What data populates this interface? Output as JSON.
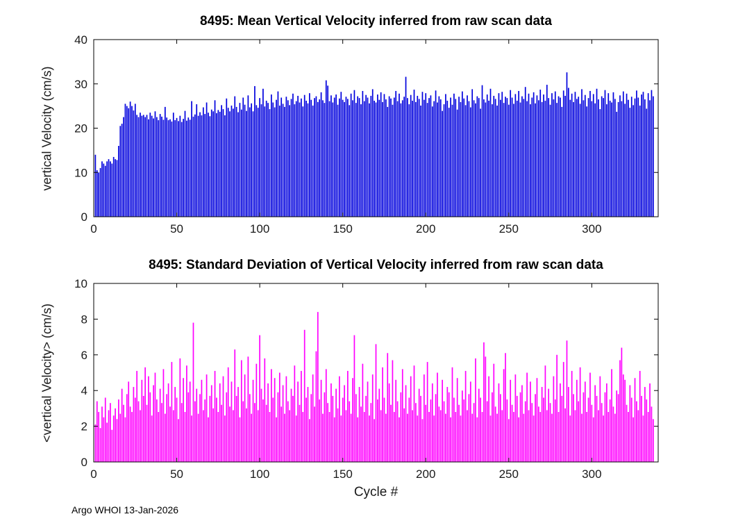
{
  "footer": {
    "credit": "Argo WHOI 13-Jan-2026"
  },
  "chart_data": [
    {
      "type": "bar",
      "title": "8495: Mean Vertical Velocity inferred from raw scan data",
      "ylabel": "vertical Velocity (cm/s)",
      "xlabel": "",
      "bar_color": "#0000dd",
      "ylim": [
        0,
        40
      ],
      "yticks": [
        0,
        10,
        20,
        30,
        40
      ],
      "xlim": [
        0,
        340
      ],
      "xticks": [
        0,
        50,
        100,
        150,
        200,
        250,
        300
      ],
      "x_start": 1,
      "values": [
        14,
        10.5,
        10,
        11,
        12.5,
        12,
        11.5,
        12.5,
        13,
        12.5,
        12,
        13.5,
        13,
        12.8,
        16,
        20.5,
        21,
        22.5,
        25.5,
        25,
        24.5,
        26,
        25,
        24,
        25.5,
        23,
        22.5,
        23.5,
        22.8,
        23,
        22.5,
        23,
        22,
        23.5,
        22.8,
        22.2,
        23.8,
        22.5,
        21.8,
        23.2,
        22.6,
        21.9,
        24.8,
        22.4,
        21.8,
        22,
        21.5,
        23.5,
        21.8,
        22.3,
        21.6,
        22.8,
        21.4,
        22.1,
        23.9,
        21.7,
        22.4,
        21.9,
        26.1,
        22.6,
        23.1,
        25.4,
        22.8,
        23.6,
        22.9,
        24.7,
        23.2,
        25.8,
        23.5,
        22.7,
        24.2,
        23.8,
        26.3,
        23.4,
        24.1,
        23.7,
        25.2,
        24.3,
        22.9,
        26.7,
        24.6,
        23.8,
        25.1,
        24.4,
        27.2,
        24.8,
        23.6,
        25.7,
        24.2,
        26.9,
        25.3,
        23.9,
        27.4,
        24.7,
        25.6,
        23.8,
        29.5,
        25.2,
        24.6,
        26.8,
        25.4,
        28.9,
        24.9,
        26.2,
        25.7,
        24.3,
        27.6,
        25.8,
        24.7,
        26.4,
        28.3,
        25.1,
        26.9,
        25.5,
        24.8,
        27.1,
        26.3,
        25.2,
        26.6,
        27.8,
        25.4,
        26.1,
        27.3,
        25.8,
        26.7,
        24.9,
        27.5,
        26.2,
        25.6,
        27.9,
        26.4,
        25.1,
        26.8,
        27.2,
        25.9,
        26.5,
        28.1,
        26.3,
        25.7,
        30.8,
        29.6,
        26.1,
        27.4,
        25.8,
        26.9,
        27.6,
        25.3,
        26.7,
        28.2,
        26.4,
        25.9,
        27.1,
        26.6,
        25.2,
        27.8,
        26.3,
        28.6,
        25.7,
        27.2,
        26.8,
        25.4,
        28.4,
        26.1,
        27.5,
        26.9,
        25.6,
        27.3,
        28.8,
        26.2,
        25.8,
        27.6,
        26.4,
        28.1,
        25.9,
        27.7,
        26.5,
        24.8,
        27.2,
        26.7,
        25.3,
        26.9,
        28.4,
        26.1,
        27.8,
        25.6,
        26.3,
        27.1,
        31.6,
        26.8,
        25.4,
        27.5,
        26.2,
        28.7,
        25.9,
        27.3,
        26.6,
        25.1,
        28.2,
        26.4,
        27.9,
        25.7,
        26.8,
        27.4,
        24.9,
        26.1,
        28.5,
        25.8,
        27.2,
        26.5,
        23.9,
        25.4,
        27.7,
        26.2,
        24.6,
        26.9,
        25.3,
        27.8,
        26.6,
        24.2,
        27.1,
        25.9,
        28.3,
        26.7,
        25.2,
        27.4,
        26.1,
        24.7,
        28.8,
        26.3,
        25.6,
        27.2,
        26.8,
        24.4,
        29.7,
        26.5,
        25.8,
        27.6,
        26.2,
        28.9,
        25.4,
        27.3,
        26.6,
        25.1,
        27.9,
        26.4,
        28.2,
        25.7,
        27.1,
        26.8,
        25.3,
        28.6,
        26.9,
        25.5,
        27.7,
        26.2,
        28.4,
        25.8,
        27.2,
        26.6,
        29.3,
        26.1,
        27.8,
        25.4,
        26.9,
        28.1,
        25.6,
        27.4,
        26.3,
        28.7,
        25.9,
        27.6,
        26.2,
        29.8,
        26.8,
        25.3,
        27.9,
        26.5,
        28.3,
        25.7,
        27.2,
        26.9,
        24.8,
        28.5,
        27.3,
        32.6,
        29.1,
        26.4,
        27.8,
        25.9,
        28.2,
        26.6,
        27.1,
        25.5,
        28.8,
        26.3,
        27.5,
        24.9,
        26.8,
        28.4,
        26.1,
        27.7,
        25.6,
        28.9,
        26.5,
        24.3,
        27.2,
        26.8,
        28.6,
        25.4,
        27.9,
        26.2,
        25.8,
        28.1,
        26.6,
        23.7,
        25.9,
        27.4,
        26.1,
        28.3,
        25.5,
        27.8,
        26.4,
        24.6,
        27.1,
        25.2,
        26.7,
        28.5,
        26.9,
        25.1,
        27.6,
        28.2,
        26.5,
        24.4,
        27.9,
        26.3,
        28.6,
        27.2
      ]
    },
    {
      "type": "bar",
      "title": "8495: Standard Deviation of Vertical Velocity inferred from raw scan data",
      "ylabel": "<vertical Velocity> (cm/s)",
      "xlabel": "Cycle #",
      "bar_color": "#ff00ff",
      "ylim": [
        0,
        10
      ],
      "yticks": [
        0,
        2,
        4,
        6,
        8,
        10
      ],
      "xlim": [
        0,
        340
      ],
      "xticks": [
        0,
        50,
        100,
        150,
        200,
        250,
        300
      ],
      "x_start": 1,
      "values": [
        2.1,
        3.4,
        2.8,
        1.9,
        3.1,
        2.5,
        3.6,
        2.2,
        2.9,
        3.3,
        1.8,
        2.6,
        3.0,
        2.4,
        3.5,
        2.7,
        4.1,
        3.2,
        2.5,
        3.8,
        4.5,
        3.1,
        2.8,
        4.2,
        3.6,
        5.1,
        3.4,
        2.9,
        4.6,
        3.7,
        5.3,
        3.2,
        4.8,
        3.9,
        2.6,
        4.3,
        5.0,
        3.5,
        2.8,
        4.1,
        3.3,
        5.2,
        2.7,
        3.8,
        4.4,
        3.1,
        5.6,
        2.9,
        4.2,
        3.6,
        2.4,
        5.8,
        3.3,
        4.7,
        2.8,
        5.4,
        3.9,
        4.5,
        2.6,
        7.8,
        3.4,
        4.1,
        2.7,
        3.8,
        4.6,
        2.9,
        3.5,
        4.9,
        2.5,
        3.7,
        4.3,
        3.0,
        5.1,
        3.6,
        2.8,
        4.4,
        3.2,
        4.8,
        2.6,
        3.9,
        5.3,
        3.1,
        4.5,
        2.9,
        6.3,
        3.7,
        4.2,
        2.5,
        5.7,
        3.4,
        4.9,
        3.0,
        5.9,
        3.8,
        2.7,
        4.6,
        3.3,
        5.5,
        2.9,
        7.1,
        4.1,
        3.5,
        5.8,
        3.2,
        4.4,
        2.8,
        5.2,
        3.6,
        4.7,
        2.5,
        3.9,
        5.0,
        3.1,
        4.3,
        2.7,
        4.8,
        3.4,
        2.9,
        4.1,
        3.7,
        5.4,
        2.6,
        4.5,
        3.2,
        5.1,
        2.8,
        7.4,
        3.6,
        4.2,
        2.4,
        3.8,
        4.9,
        3.1,
        6.2,
        8.4,
        3.5,
        4.6,
        2.7,
        3.9,
        5.2,
        3.3,
        2.8,
        4.4,
        3.7,
        2.5,
        4.1,
        3.0,
        4.8,
        2.6,
        3.6,
        4.3,
        2.9,
        5.1,
        3.4,
        2.7,
        4.7,
        7.1,
        3.8,
        2.5,
        4.2,
        3.1,
        5.5,
        2.8,
        3.7,
        4.5,
        2.6,
        3.3,
        4.9,
        2.4,
        6.6,
        3.5,
        4.1,
        2.9,
        5.3,
        3.6,
        2.7,
        6.1,
        4.4,
        3.2,
        5.7,
        2.8,
        4.6,
        3.4,
        2.5,
        3.9,
        5.2,
        3.0,
        4.3,
        2.7,
        3.6,
        4.8,
        2.9,
        5.4,
        3.3,
        2.6,
        4.1,
        3.7,
        2.4,
        4.9,
        3.2,
        5.6,
        2.8,
        3.5,
        4.4,
        2.6,
        3.8,
        5.0,
        3.1,
        2.9,
        4.6,
        3.4,
        2.7,
        4.2,
        3.9,
        2.5,
        5.3,
        3.6,
        2.8,
        4.7,
        3.2,
        2.6,
        4.0,
        3.5,
        5.1,
        2.9,
        3.8,
        4.5,
        2.7,
        3.3,
        5.8,
        2.5,
        4.1,
        3.6,
        2.8,
        6.7,
        5.9,
        3.4,
        4.8,
        2.6,
        3.9,
        5.5,
        3.1,
        2.7,
        4.4,
        3.8,
        2.9,
        5.2,
        6.1,
        3.5,
        2.4,
        4.6,
        3.2,
        2.8,
        4.9,
        3.7,
        2.5,
        3.9,
        4.3,
        2.7,
        3.4,
        5.0,
        2.9,
        4.5,
        3.3,
        2.6,
        3.8,
        4.7,
        3.1,
        2.8,
        4.2,
        3.6,
        5.4,
        2.9,
        4.1,
        3.3,
        2.7,
        4.8,
        3.5,
        6.0,
        2.8,
        4.4,
        3.7,
        5.6,
        3.0,
        6.8,
        4.2,
        2.6,
        5.1,
        3.8,
        2.9,
        4.6,
        3.4,
        5.3,
        2.7,
        3.9,
        4.5,
        2.8,
        3.6,
        5.0,
        3.2,
        2.5,
        4.3,
        3.7,
        2.9,
        4.8,
        3.3,
        2.6,
        3.9,
        4.4,
        2.8,
        3.5,
        5.2,
        3.1,
        2.7,
        4.0,
        3.8,
        5.7,
        6.4,
        4.9,
        4.6,
        3.2,
        2.8,
        4.3,
        3.6,
        2.5,
        4.7,
        3.4,
        2.9,
        5.1,
        3.7,
        2.6,
        4.2,
        3.5,
        2.8,
        4.4,
        3.1,
        2.4
      ]
    }
  ]
}
